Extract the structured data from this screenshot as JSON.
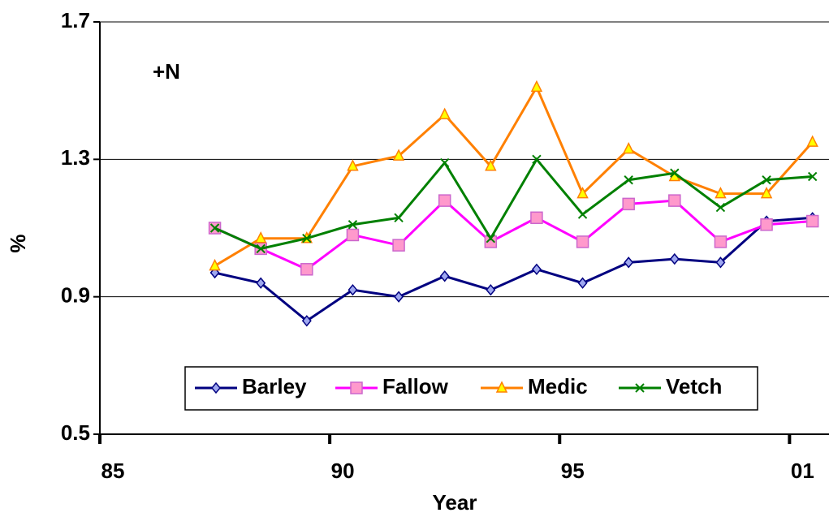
{
  "chart_data": {
    "type": "line",
    "title": "+N",
    "x_label": "Year",
    "y_label": "%",
    "x": [
      87.5,
      88.5,
      89.5,
      90.5,
      91.5,
      92.5,
      93.5,
      94.5,
      95.5,
      96.5,
      97.5,
      98.5,
      99.5,
      100.5
    ],
    "xlim": [
      85,
      101
    ],
    "xticks": [
      85,
      90,
      95,
      {
        "value": 100,
        "label": "01"
      }
    ],
    "ylim": [
      0.5,
      1.7
    ],
    "yticks": [
      0.5,
      0.9,
      1.3,
      1.7
    ],
    "grid": true,
    "series": [
      {
        "name": "Barley",
        "color": "#000080",
        "marker": "diamond",
        "marker_fill": "#9fa8f0",
        "values": [
          0.97,
          0.94,
          0.83,
          0.92,
          0.9,
          0.96,
          0.92,
          0.98,
          0.94,
          1.0,
          1.01,
          1.0,
          1.12,
          1.13
        ]
      },
      {
        "name": "Fallow",
        "color": "#ff00ff",
        "marker": "square",
        "marker_fill": "#ff99cc",
        "values": [
          1.1,
          1.04,
          0.98,
          1.08,
          1.05,
          1.18,
          1.06,
          1.13,
          1.06,
          1.17,
          1.18,
          1.06,
          1.11,
          1.12
        ]
      },
      {
        "name": "Medic",
        "color": "#ff8000",
        "marker": "triangle",
        "marker_fill": "#ffff00",
        "values": [
          0.99,
          1.07,
          1.07,
          1.28,
          1.31,
          1.43,
          1.28,
          1.51,
          1.2,
          1.33,
          1.25,
          1.2,
          1.2,
          1.35
        ]
      },
      {
        "name": "Vetch",
        "color": "#008000",
        "marker": "x",
        "marker_fill": "none",
        "values": [
          1.1,
          1.04,
          1.07,
          1.11,
          1.13,
          1.29,
          1.07,
          1.3,
          1.14,
          1.24,
          1.26,
          1.16,
          1.24,
          1.25
        ]
      }
    ]
  }
}
